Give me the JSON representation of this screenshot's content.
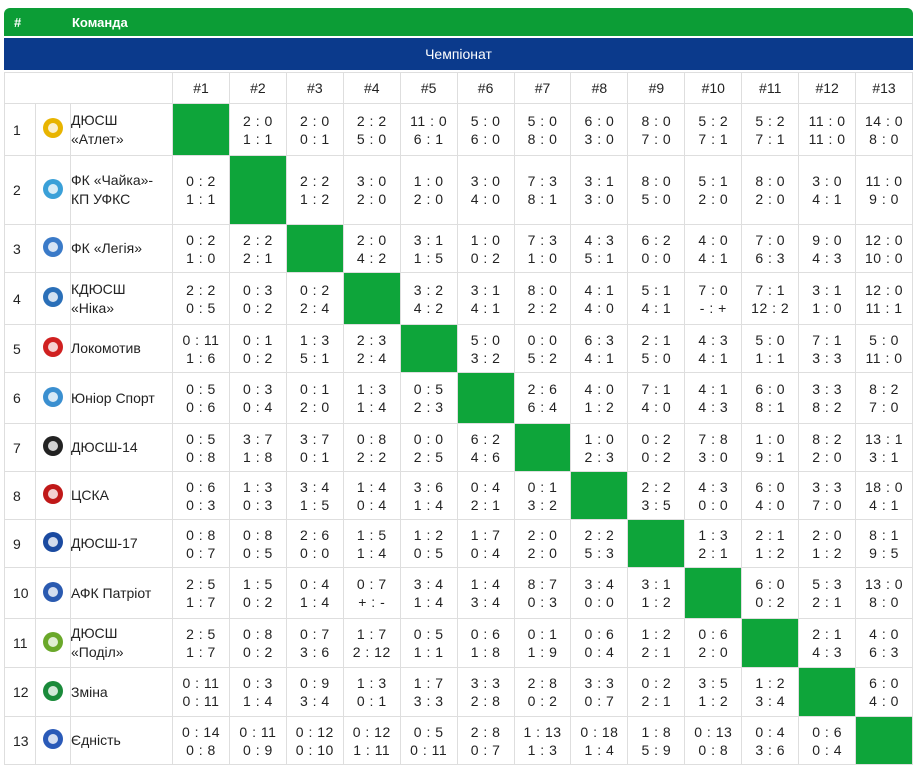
{
  "header": {
    "number_label": "#",
    "team_label": "Команда",
    "competition": "Чемпіонат"
  },
  "columns": [
    "#1",
    "#2",
    "#3",
    "#4",
    "#5",
    "#6",
    "#7",
    "#8",
    "#9",
    "#10",
    "#11",
    "#12",
    "#13"
  ],
  "rows": [
    {
      "number": 1,
      "team": "ДЮСШ «Атлет»",
      "results": [
        null,
        [
          "2 : 0",
          "1 : 1"
        ],
        [
          "2 : 0",
          "0 : 1"
        ],
        [
          "2 : 2",
          "5 : 0"
        ],
        [
          "11 : 0",
          "6 : 1"
        ],
        [
          "5 : 0",
          "6 : 0"
        ],
        [
          "5 : 0",
          "8 : 0"
        ],
        [
          "6 : 0",
          "3 : 0"
        ],
        [
          "8 : 0",
          "7 : 0"
        ],
        [
          "5 : 2",
          "7 : 1"
        ],
        [
          "5 : 2",
          "7 : 1"
        ],
        [
          "11 : 0",
          "11 : 0"
        ],
        [
          "14 : 0",
          "8 : 0"
        ]
      ]
    },
    {
      "number": 2,
      "team": "ФК «Чайка»-КП УФКС",
      "results": [
        [
          "0 : 2",
          "1 : 1"
        ],
        null,
        [
          "2 : 2",
          "1 : 2"
        ],
        [
          "3 : 0",
          "2 : 0"
        ],
        [
          "1 : 0",
          "2 : 0"
        ],
        [
          "3 : 0",
          "4 : 0"
        ],
        [
          "7 : 3",
          "8 : 1"
        ],
        [
          "3 : 1",
          "3 : 0"
        ],
        [
          "8 : 0",
          "5 : 0"
        ],
        [
          "5 : 1",
          "2 : 0"
        ],
        [
          "8 : 0",
          "2 : 0"
        ],
        [
          "3 : 0",
          "4 : 1"
        ],
        [
          "11 : 0",
          "9 : 0"
        ]
      ]
    },
    {
      "number": 3,
      "team": "ФК «Легія»",
      "results": [
        [
          "0 : 2",
          "1 : 0"
        ],
        [
          "2 : 2",
          "2 : 1"
        ],
        null,
        [
          "2 : 0",
          "4 : 2"
        ],
        [
          "3 : 1",
          "1 : 5"
        ],
        [
          "1 : 0",
          "0 : 2"
        ],
        [
          "7 : 3",
          "1 : 0"
        ],
        [
          "4 : 3",
          "5 : 1"
        ],
        [
          "6 : 2",
          "0 : 0"
        ],
        [
          "4 : 0",
          "4 : 1"
        ],
        [
          "7 : 0",
          "6 : 3"
        ],
        [
          "9 : 0",
          "4 : 3"
        ],
        [
          "12 : 0",
          "10 : 0"
        ]
      ]
    },
    {
      "number": 4,
      "team": "КДЮСШ «Ніка»",
      "results": [
        [
          "2 : 2",
          "0 : 5"
        ],
        [
          "0 : 3",
          "0 : 2"
        ],
        [
          "0 : 2",
          "2 : 4"
        ],
        null,
        [
          "3 : 2",
          "4 : 2"
        ],
        [
          "3 : 1",
          "4 : 1"
        ],
        [
          "8 : 0",
          "2 : 2"
        ],
        [
          "4 : 1",
          "4 : 0"
        ],
        [
          "5 : 1",
          "4 : 1"
        ],
        [
          "7 : 0",
          "- : +"
        ],
        [
          "7 : 1",
          "12 : 2"
        ],
        [
          "3 : 1",
          "1 : 0"
        ],
        [
          "12 : 0",
          "11 : 1"
        ]
      ]
    },
    {
      "number": 5,
      "team": "Локомотив",
      "results": [
        [
          "0 : 11",
          "1 : 6"
        ],
        [
          "0 : 1",
          "0 : 2"
        ],
        [
          "1 : 3",
          "5 : 1"
        ],
        [
          "2 : 3",
          "2 : 4"
        ],
        null,
        [
          "5 : 0",
          "3 : 2"
        ],
        [
          "0 : 0",
          "5 : 2"
        ],
        [
          "6 : 3",
          "4 : 1"
        ],
        [
          "2 : 1",
          "5 : 0"
        ],
        [
          "4 : 3",
          "4 : 1"
        ],
        [
          "5 : 0",
          "1 : 1"
        ],
        [
          "7 : 1",
          "3 : 3"
        ],
        [
          "5 : 0",
          "11 : 0"
        ]
      ]
    },
    {
      "number": 6,
      "team": "Юніор Спорт",
      "results": [
        [
          "0 : 5",
          "0 : 6"
        ],
        [
          "0 : 3",
          "0 : 4"
        ],
        [
          "0 : 1",
          "2 : 0"
        ],
        [
          "1 : 3",
          "1 : 4"
        ],
        [
          "0 : 5",
          "2 : 3"
        ],
        null,
        [
          "2 : 6",
          "6 : 4"
        ],
        [
          "4 : 0",
          "1 : 2"
        ],
        [
          "7 : 1",
          "4 : 0"
        ],
        [
          "4 : 1",
          "4 : 3"
        ],
        [
          "6 : 0",
          "8 : 1"
        ],
        [
          "3 : 3",
          "8 : 2"
        ],
        [
          "8 : 2",
          "7 : 0"
        ]
      ]
    },
    {
      "number": 7,
      "team": "ДЮСШ-14",
      "results": [
        [
          "0 : 5",
          "0 : 8"
        ],
        [
          "3 : 7",
          "1 : 8"
        ],
        [
          "3 : 7",
          "0 : 1"
        ],
        [
          "0 : 8",
          "2 : 2"
        ],
        [
          "0 : 0",
          "2 : 5"
        ],
        [
          "6 : 2",
          "4 : 6"
        ],
        null,
        [
          "1 : 0",
          "2 : 3"
        ],
        [
          "0 : 2",
          "0 : 2"
        ],
        [
          "7 : 8",
          "3 : 0"
        ],
        [
          "1 : 0",
          "9 : 1"
        ],
        [
          "8 : 2",
          "2 : 0"
        ],
        [
          "13 : 1",
          "3 : 1"
        ]
      ]
    },
    {
      "number": 8,
      "team": "ЦСКА",
      "results": [
        [
          "0 : 6",
          "0 : 3"
        ],
        [
          "1 : 3",
          "0 : 3"
        ],
        [
          "3 : 4",
          "1 : 5"
        ],
        [
          "1 : 4",
          "0 : 4"
        ],
        [
          "3 : 6",
          "1 : 4"
        ],
        [
          "0 : 4",
          "2 : 1"
        ],
        [
          "0 : 1",
          "3 : 2"
        ],
        null,
        [
          "2 : 2",
          "3 : 5"
        ],
        [
          "4 : 3",
          "0 : 0"
        ],
        [
          "6 : 0",
          "4 : 0"
        ],
        [
          "3 : 3",
          "7 : 0"
        ],
        [
          "18 : 0",
          "4 : 1"
        ]
      ]
    },
    {
      "number": 9,
      "team": "ДЮСШ-17",
      "results": [
        [
          "0 : 8",
          "0 : 7"
        ],
        [
          "0 : 8",
          "0 : 5"
        ],
        [
          "2 : 6",
          "0 : 0"
        ],
        [
          "1 : 5",
          "1 : 4"
        ],
        [
          "1 : 2",
          "0 : 5"
        ],
        [
          "1 : 7",
          "0 : 4"
        ],
        [
          "2 : 0",
          "2 : 0"
        ],
        [
          "2 : 2",
          "5 : 3"
        ],
        null,
        [
          "1 : 3",
          "2 : 1"
        ],
        [
          "2 : 1",
          "1 : 2"
        ],
        [
          "2 : 0",
          "1 : 2"
        ],
        [
          "8 : 1",
          "9 : 5"
        ]
      ]
    },
    {
      "number": 10,
      "team": "АФК Патріот",
      "results": [
        [
          "2 : 5",
          "1 : 7"
        ],
        [
          "1 : 5",
          "0 : 2"
        ],
        [
          "0 : 4",
          "1 : 4"
        ],
        [
          "0 : 7",
          "+ : -"
        ],
        [
          "3 : 4",
          "1 : 4"
        ],
        [
          "1 : 4",
          "3 : 4"
        ],
        [
          "8 : 7",
          "0 : 3"
        ],
        [
          "3 : 4",
          "0 : 0"
        ],
        [
          "3 : 1",
          "1 : 2"
        ],
        null,
        [
          "6 : 0",
          "0 : 2"
        ],
        [
          "5 : 3",
          "2 : 1"
        ],
        [
          "13 : 0",
          "8 : 0"
        ]
      ]
    },
    {
      "number": 11,
      "team": "ДЮСШ «Поділ»",
      "results": [
        [
          "2 : 5",
          "1 : 7"
        ],
        [
          "0 : 8",
          "0 : 2"
        ],
        [
          "0 : 7",
          "3 : 6"
        ],
        [
          "1 : 7",
          "2 : 12"
        ],
        [
          "0 : 5",
          "1 : 1"
        ],
        [
          "0 : 6",
          "1 : 8"
        ],
        [
          "0 : 1",
          "1 : 9"
        ],
        [
          "0 : 6",
          "0 : 4"
        ],
        [
          "1 : 2",
          "2 : 1"
        ],
        [
          "0 : 6",
          "2 : 0"
        ],
        null,
        [
          "2 : 1",
          "4 : 3"
        ],
        [
          "4 : 0",
          "6 : 3"
        ]
      ]
    },
    {
      "number": 12,
      "team": "Зміна",
      "results": [
        [
          "0 : 11",
          "0 : 11"
        ],
        [
          "0 : 3",
          "1 : 4"
        ],
        [
          "0 : 9",
          "3 : 4"
        ],
        [
          "1 : 3",
          "0 : 1"
        ],
        [
          "1 : 7",
          "3 : 3"
        ],
        [
          "3 : 3",
          "2 : 8"
        ],
        [
          "2 : 8",
          "0 : 2"
        ],
        [
          "3 : 3",
          "0 : 7"
        ],
        [
          "0 : 2",
          "2 : 1"
        ],
        [
          "3 : 5",
          "1 : 2"
        ],
        [
          "1 : 2",
          "3 : 4"
        ],
        null,
        [
          "6 : 0",
          "4 : 0"
        ]
      ]
    },
    {
      "number": 13,
      "team": "Єдність",
      "results": [
        [
          "0 : 14",
          "0 : 8"
        ],
        [
          "0 : 11",
          "0 : 9"
        ],
        [
          "0 : 12",
          "0 : 10"
        ],
        [
          "0 : 12",
          "1 : 11"
        ],
        [
          "0 : 5",
          "0 : 11"
        ],
        [
          "2 : 8",
          "0 : 7"
        ],
        [
          "1 : 13",
          "1 : 3"
        ],
        [
          "0 : 18",
          "1 : 4"
        ],
        [
          "1 : 8",
          "5 : 9"
        ],
        [
          "0 : 13",
          "0 : 8"
        ],
        [
          "0 : 4",
          "3 : 6"
        ],
        [
          "0 : 6",
          "0 : 4"
        ],
        null
      ]
    }
  ]
}
